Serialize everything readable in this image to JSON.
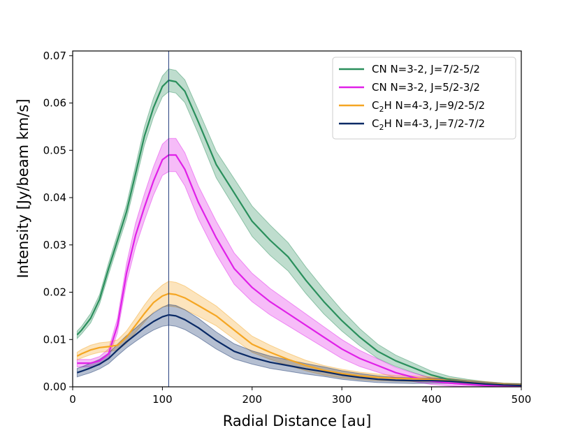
{
  "chart_data": {
    "type": "line",
    "title": "",
    "xlabel": "Radial Distance [au]",
    "ylabel": "Intensity [Jy/beam km/s]",
    "xlim": [
      0,
      500
    ],
    "ylim": [
      0,
      0.071
    ],
    "xticks": [
      0,
      100,
      200,
      300,
      400,
      500
    ],
    "xtick_labels": [
      "0",
      "100",
      "200",
      "300",
      "400",
      "500"
    ],
    "yticks": [
      0.0,
      0.01,
      0.02,
      0.03,
      0.04,
      0.05,
      0.06,
      0.07
    ],
    "ytick_labels": [
      "0.00",
      "0.01",
      "0.02",
      "0.03",
      "0.04",
      "0.05",
      "0.06",
      "0.07"
    ],
    "vline_x": 107,
    "legend_position": "top-right",
    "series": [
      {
        "name": "CN N=3-2, J=7/2-5/2",
        "color": "#2a8f5c",
        "x": [
          5,
          10,
          20,
          30,
          40,
          50,
          60,
          70,
          80,
          90,
          100,
          107,
          115,
          125,
          140,
          160,
          180,
          200,
          220,
          240,
          260,
          280,
          300,
          320,
          340,
          360,
          380,
          400,
          420,
          440,
          460,
          480,
          500
        ],
        "y": [
          0.011,
          0.012,
          0.0145,
          0.0185,
          0.025,
          0.031,
          0.037,
          0.045,
          0.053,
          0.059,
          0.0635,
          0.0648,
          0.0645,
          0.0625,
          0.056,
          0.047,
          0.041,
          0.035,
          0.031,
          0.0275,
          0.0225,
          0.018,
          0.014,
          0.0105,
          0.0075,
          0.0055,
          0.004,
          0.0025,
          0.0015,
          0.001,
          0.0006,
          0.0004,
          0.0003
        ],
        "err": [
          0.0008,
          0.0008,
          0.001,
          0.001,
          0.0012,
          0.0013,
          0.0015,
          0.0017,
          0.0019,
          0.002,
          0.0022,
          0.0024,
          0.0024,
          0.0024,
          0.0025,
          0.0028,
          0.003,
          0.0032,
          0.0032,
          0.003,
          0.0028,
          0.0026,
          0.0022,
          0.0018,
          0.0015,
          0.0012,
          0.001,
          0.0008,
          0.0007,
          0.0006,
          0.0005,
          0.0004,
          0.0004
        ]
      },
      {
        "name": "CN N=3-2, J=5/2-3/2",
        "color": "#e020e8",
        "x": [
          5,
          10,
          20,
          30,
          40,
          50,
          60,
          70,
          80,
          90,
          100,
          107,
          115,
          125,
          140,
          160,
          180,
          200,
          220,
          240,
          260,
          280,
          300,
          320,
          340,
          360,
          380,
          400,
          420,
          440,
          460,
          480,
          500
        ],
        "y": [
          0.005,
          0.005,
          0.005,
          0.0055,
          0.007,
          0.013,
          0.024,
          0.032,
          0.038,
          0.0435,
          0.048,
          0.049,
          0.049,
          0.046,
          0.039,
          0.0315,
          0.025,
          0.021,
          0.018,
          0.0155,
          0.013,
          0.0105,
          0.008,
          0.006,
          0.0045,
          0.003,
          0.002,
          0.0012,
          0.0008,
          0.0005,
          0.0003,
          0.0002,
          0.0002
        ],
        "err": [
          0.0008,
          0.0008,
          0.0008,
          0.0009,
          0.001,
          0.0015,
          0.002,
          0.0025,
          0.0028,
          0.003,
          0.0033,
          0.0035,
          0.0035,
          0.0035,
          0.0035,
          0.0035,
          0.0033,
          0.003,
          0.0028,
          0.0026,
          0.0024,
          0.0022,
          0.002,
          0.0017,
          0.0014,
          0.0011,
          0.0009,
          0.0007,
          0.0006,
          0.0005,
          0.0004,
          0.0003,
          0.0003
        ]
      },
      {
        "name": "C2H N=4-3, J=9/2-5/2",
        "color": "#f5a623",
        "x": [
          5,
          10,
          20,
          30,
          40,
          50,
          60,
          70,
          80,
          90,
          100,
          107,
          115,
          125,
          140,
          160,
          180,
          200,
          220,
          240,
          260,
          280,
          300,
          320,
          340,
          360,
          380,
          400,
          420,
          440,
          460,
          480,
          500
        ],
        "y": [
          0.0065,
          0.007,
          0.0078,
          0.0083,
          0.0085,
          0.0088,
          0.0105,
          0.013,
          0.0155,
          0.0178,
          0.0192,
          0.0197,
          0.0195,
          0.0188,
          0.0172,
          0.015,
          0.012,
          0.009,
          0.0073,
          0.0058,
          0.0045,
          0.0035,
          0.0028,
          0.0023,
          0.002,
          0.0018,
          0.0017,
          0.0016,
          0.0013,
          0.001,
          0.0007,
          0.0005,
          0.0004
        ],
        "err": [
          0.0008,
          0.0009,
          0.001,
          0.001,
          0.001,
          0.0011,
          0.0013,
          0.0015,
          0.0018,
          0.002,
          0.0023,
          0.0026,
          0.0026,
          0.0025,
          0.0023,
          0.0021,
          0.0019,
          0.0017,
          0.0015,
          0.0013,
          0.0011,
          0.001,
          0.0009,
          0.0008,
          0.0007,
          0.0006,
          0.0006,
          0.0005,
          0.0005,
          0.0004,
          0.0004,
          0.0003,
          0.0003
        ]
      },
      {
        "name": "C2H N=4-3, J=7/2-7/2",
        "color": "#0a2a66",
        "x": [
          5,
          10,
          20,
          30,
          40,
          50,
          60,
          70,
          80,
          90,
          100,
          107,
          115,
          125,
          140,
          160,
          180,
          200,
          220,
          240,
          260,
          280,
          300,
          320,
          340,
          360,
          380,
          400,
          420,
          440,
          460,
          480,
          500
        ],
        "y": [
          0.003,
          0.0033,
          0.004,
          0.0048,
          0.006,
          0.0078,
          0.0095,
          0.011,
          0.0125,
          0.0138,
          0.0148,
          0.0152,
          0.015,
          0.0142,
          0.0125,
          0.0098,
          0.0075,
          0.0062,
          0.0052,
          0.0045,
          0.0038,
          0.0032,
          0.0025,
          0.002,
          0.0016,
          0.0014,
          0.0013,
          0.0013,
          0.0012,
          0.0009,
          0.0006,
          0.0004,
          0.0003
        ],
        "err": [
          0.0009,
          0.0009,
          0.001,
          0.001,
          0.0011,
          0.0012,
          0.0013,
          0.0014,
          0.0016,
          0.0018,
          0.002,
          0.0022,
          0.0022,
          0.0021,
          0.002,
          0.0018,
          0.0016,
          0.0014,
          0.0013,
          0.0012,
          0.0011,
          0.001,
          0.0009,
          0.0008,
          0.0007,
          0.0006,
          0.0006,
          0.0005,
          0.0005,
          0.0004,
          0.0004,
          0.0003,
          0.0003
        ]
      }
    ]
  }
}
